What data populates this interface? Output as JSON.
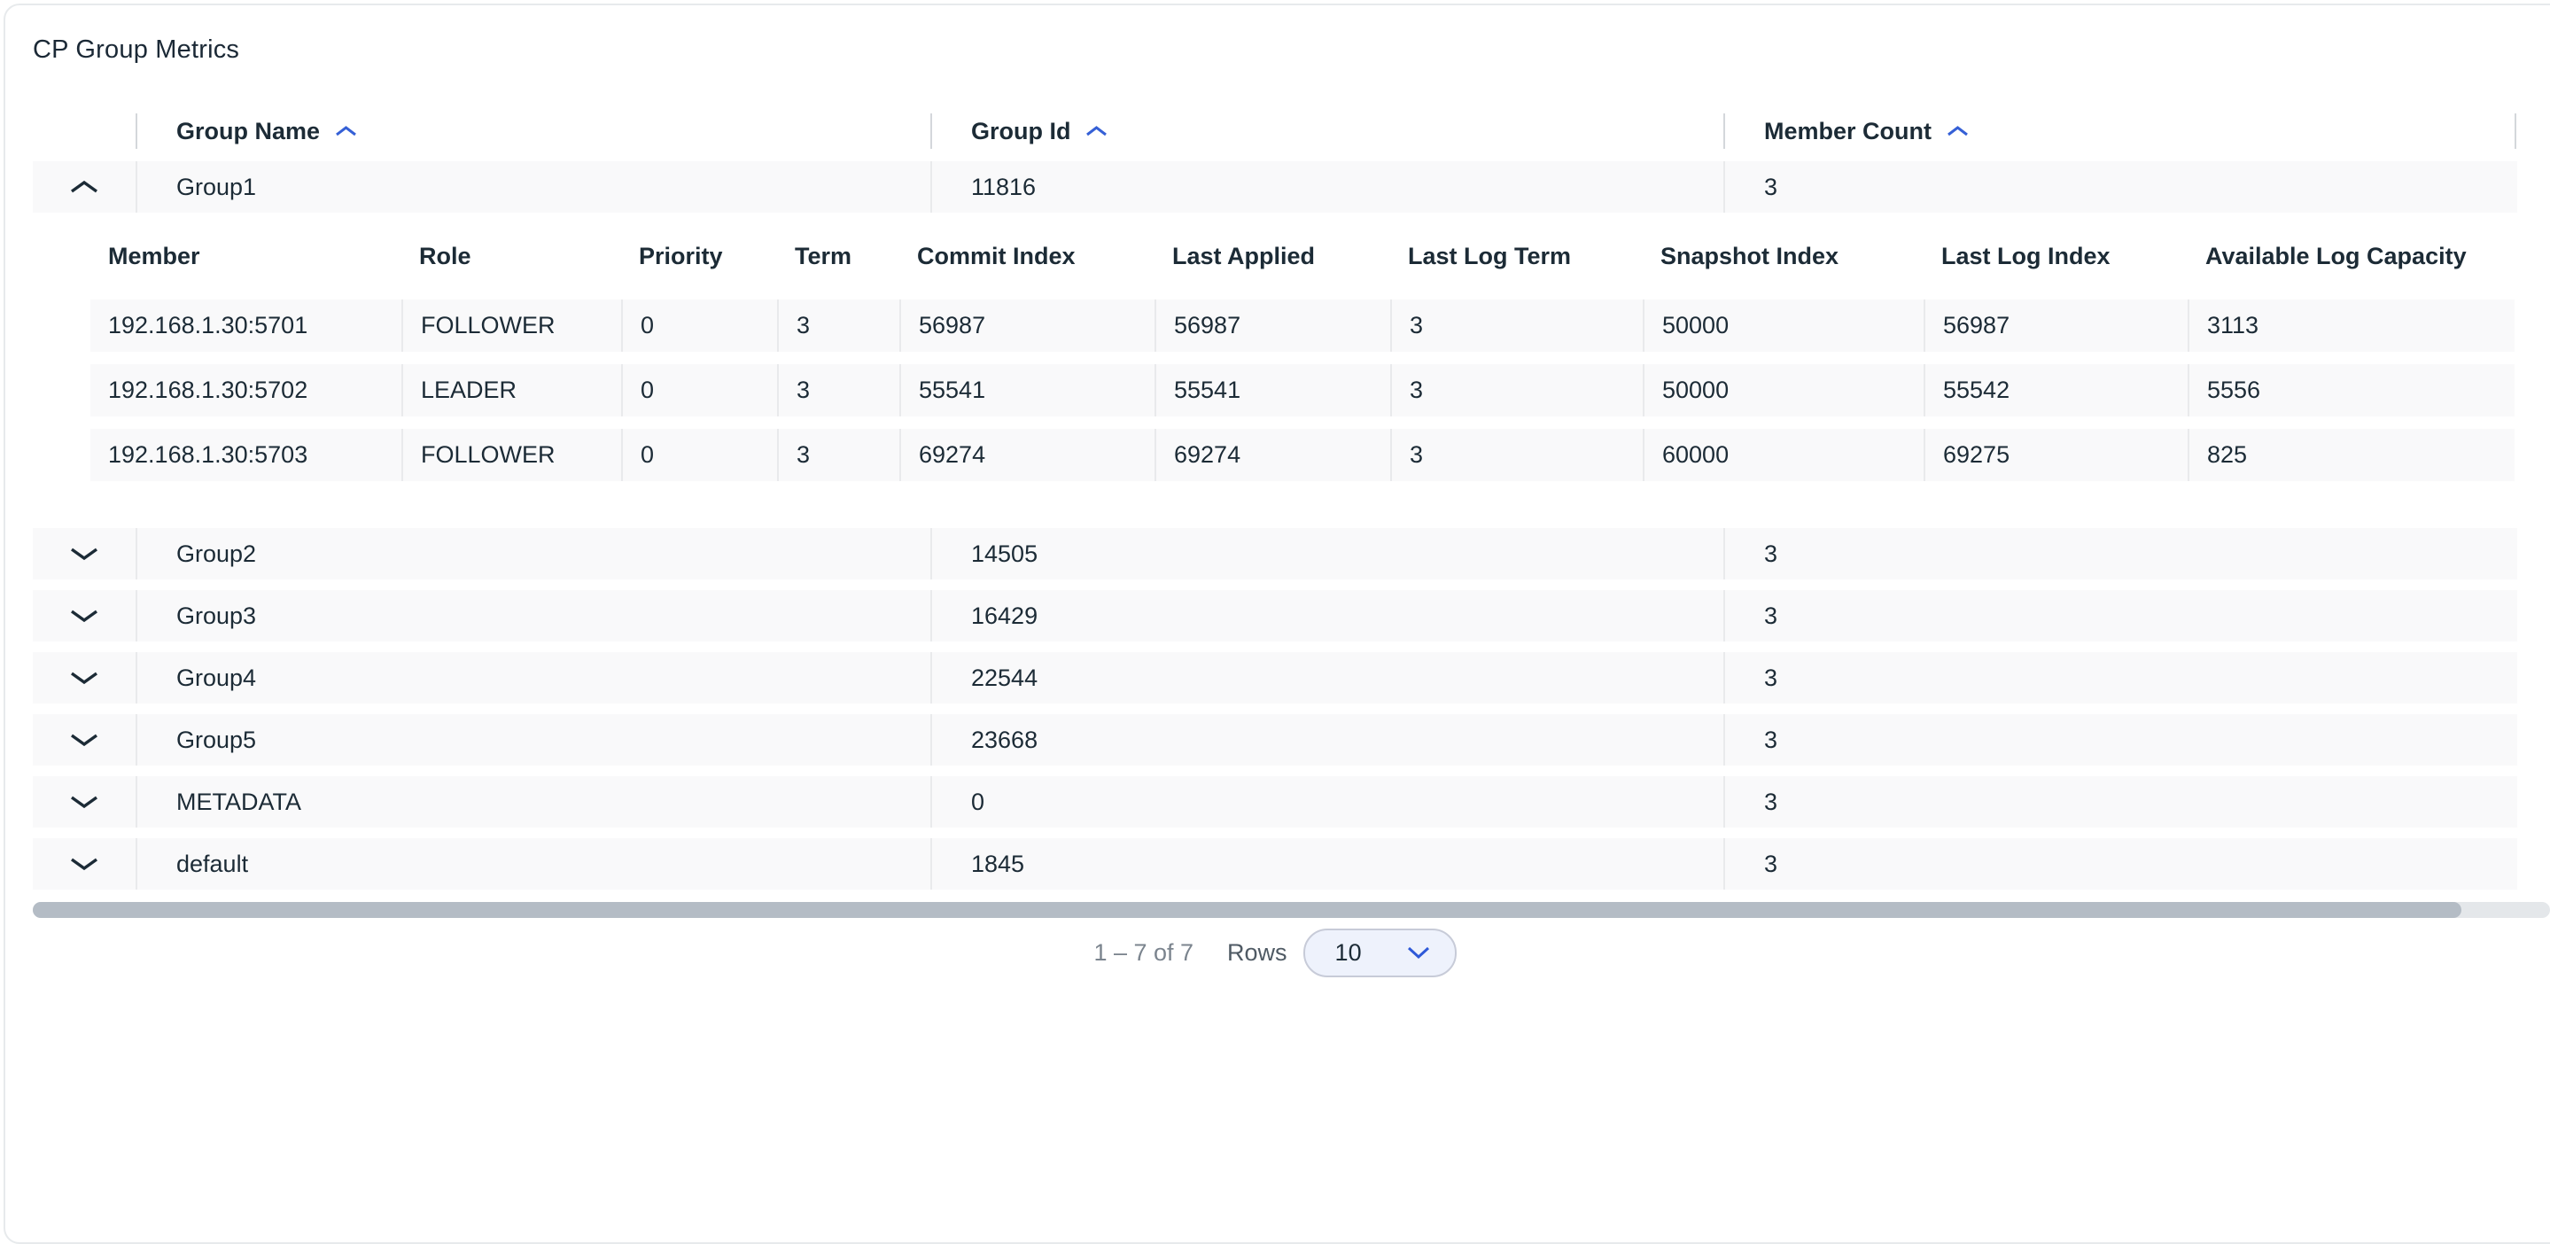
{
  "title": "CP Group Metrics",
  "colors": {
    "accent_blue": "#3560d6",
    "text_navy": "#1c2b36",
    "row_bg": "#f9f9fa",
    "scroll_thumb": "#b4bcc5"
  },
  "icons": {
    "sort": "chevron-up-icon",
    "expanded_row": "chevron-up-icon",
    "collapsed_row": "chevron-down-icon",
    "dropdown": "chevron-down-icon"
  },
  "main_table": {
    "columns": [
      {
        "label": "Group Name",
        "sorted": "asc"
      },
      {
        "label": "Group Id",
        "sorted": "asc"
      },
      {
        "label": "Member Count",
        "sorted": "asc"
      }
    ],
    "groups": [
      {
        "name": "Group1",
        "id": "11816",
        "member_count": "3",
        "expanded": true
      },
      {
        "name": "Group2",
        "id": "14505",
        "member_count": "3",
        "expanded": false
      },
      {
        "name": "Group3",
        "id": "16429",
        "member_count": "3",
        "expanded": false
      },
      {
        "name": "Group4",
        "id": "22544",
        "member_count": "3",
        "expanded": false
      },
      {
        "name": "Group5",
        "id": "23668",
        "member_count": "3",
        "expanded": false
      },
      {
        "name": "METADATA",
        "id": "0",
        "member_count": "3",
        "expanded": false
      },
      {
        "name": "default",
        "id": "1845",
        "member_count": "3",
        "expanded": false
      }
    ]
  },
  "member_table": {
    "columns": [
      "Member",
      "Role",
      "Priority",
      "Term",
      "Commit Index",
      "Last Applied",
      "Last Log Term",
      "Snapshot Index",
      "Last Log Index",
      "Available Log Capacity"
    ],
    "rows": [
      [
        "192.168.1.30:5701",
        "FOLLOWER",
        "0",
        "3",
        "56987",
        "56987",
        "3",
        "50000",
        "56987",
        "3113"
      ],
      [
        "192.168.1.30:5702",
        "LEADER",
        "0",
        "3",
        "55541",
        "55541",
        "3",
        "50000",
        "55542",
        "5556"
      ],
      [
        "192.168.1.30:5703",
        "FOLLOWER",
        "0",
        "3",
        "69274",
        "69274",
        "3",
        "60000",
        "69275",
        "825"
      ]
    ]
  },
  "pagination": {
    "range_text": "1 – 7 of 7",
    "rows_label": "Rows",
    "page_size": "10"
  }
}
